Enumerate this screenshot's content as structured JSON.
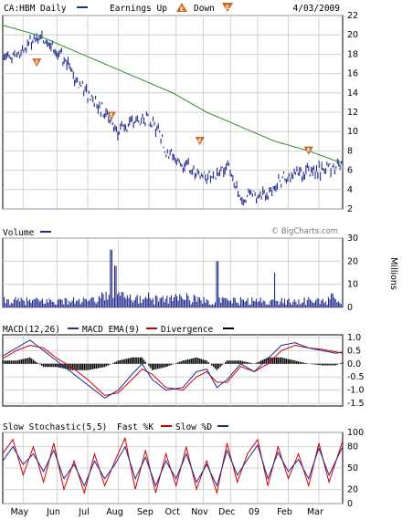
{
  "colors": {
    "price": "#1f2a8f",
    "ma": "#2e8b2e",
    "volume": "#1f2a8f",
    "macd": "#1f2a8f",
    "ema": "#d40000",
    "divergence": "#000000",
    "fastK": "#d40000",
    "slowD": "#1f2a8f",
    "grid": "#c8c8c8",
    "earnings": "#c8641e"
  },
  "header": {
    "ticker": "CA:HBM Daily",
    "earnings_label": "Earnings Up",
    "down_label": "Down",
    "date": "4/03/2009",
    "up_icon": "E",
    "down_icon": "E"
  },
  "watermark": "© BigCharts.com",
  "volume_header": {
    "label": "Volume"
  },
  "volume_unit": "Millions",
  "macd_header": {
    "label": "MACD(12,26)",
    "ema_label": "MACD EMA(9)",
    "div_label": "Divergence"
  },
  "stoch_header": {
    "label": "Slow Stochastic(5,5)",
    "fast_label": "Fast %K",
    "slow_label": "Slow %D"
  },
  "chart_data": [
    {
      "type": "line",
      "name": "price",
      "y_ticks": [
        "22",
        "20",
        "18",
        "16",
        "14",
        "12",
        "10",
        "8",
        "6",
        "4",
        "2"
      ],
      "ylim": [
        2,
        22
      ],
      "x_ticks": [
        "May",
        "Jun",
        "Jul",
        "Aug",
        "Sep",
        "Oct",
        "Nov",
        "Dec",
        "09",
        "Feb",
        "Mar"
      ],
      "grid": true,
      "price_points": [
        [
          0,
          17.5
        ],
        [
          5,
          18
        ],
        [
          10,
          20
        ],
        [
          14,
          19
        ],
        [
          18,
          17.5
        ],
        [
          22,
          15
        ],
        [
          26,
          13.5
        ],
        [
          30,
          12
        ],
        [
          34,
          10
        ],
        [
          38,
          11
        ],
        [
          42,
          11.5
        ],
        [
          46,
          10
        ],
        [
          48,
          8
        ],
        [
          52,
          7
        ],
        [
          56,
          6
        ],
        [
          60,
          5
        ],
        [
          64,
          6
        ],
        [
          66,
          6.5
        ],
        [
          68,
          5
        ],
        [
          70,
          3.2
        ],
        [
          74,
          3.3
        ],
        [
          78,
          3.5
        ],
        [
          82,
          5
        ],
        [
          86,
          5.6
        ],
        [
          90,
          5.8
        ],
        [
          94,
          6
        ],
        [
          98,
          6.5
        ],
        [
          100,
          6.8
        ]
      ],
      "ma_points": [
        [
          0,
          21
        ],
        [
          10,
          20
        ],
        [
          20,
          18.5
        ],
        [
          30,
          17
        ],
        [
          40,
          15.5
        ],
        [
          50,
          14
        ],
        [
          60,
          12
        ],
        [
          70,
          10.5
        ],
        [
          80,
          9
        ],
        [
          90,
          8
        ],
        [
          100,
          6.7
        ]
      ],
      "earnings_down": [
        [
          10,
          16.7
        ],
        [
          32,
          11.2
        ],
        [
          58,
          8.6
        ],
        [
          90,
          7.6
        ]
      ]
    },
    {
      "type": "bar",
      "name": "volume",
      "y_ticks": [
        "30",
        "20",
        "10",
        "0"
      ],
      "ylim": [
        0,
        30
      ],
      "peaks": [
        [
          32,
          25
        ],
        [
          33,
          18
        ],
        [
          63,
          20
        ],
        [
          80,
          15
        ],
        [
          97,
          6
        ]
      ]
    },
    {
      "type": "line",
      "name": "macd",
      "y_ticks": [
        "1.0",
        "0.5",
        "0.0",
        "-0.5",
        "-1.0",
        "-1.5"
      ],
      "ylim": [
        -1.6,
        1.1
      ],
      "macd_points": [
        [
          0,
          0.3
        ],
        [
          4,
          0.6
        ],
        [
          8,
          0.9
        ],
        [
          12,
          0.5
        ],
        [
          16,
          0.1
        ],
        [
          20,
          -0.3
        ],
        [
          25,
          -0.8
        ],
        [
          30,
          -1.3
        ],
        [
          34,
          -1.0
        ],
        [
          38,
          -0.4
        ],
        [
          41,
          0.0
        ],
        [
          44,
          -0.6
        ],
        [
          48,
          -1.0
        ],
        [
          53,
          -0.9
        ],
        [
          57,
          -0.3
        ],
        [
          60,
          -0.2
        ],
        [
          63,
          -0.9
        ],
        [
          66,
          -0.6
        ],
        [
          70,
          0.0
        ],
        [
          74,
          -0.3
        ],
        [
          78,
          0.2
        ],
        [
          82,
          0.7
        ],
        [
          86,
          0.8
        ],
        [
          90,
          0.6
        ],
        [
          94,
          0.5
        ],
        [
          98,
          0.4
        ],
        [
          100,
          0.45
        ]
      ],
      "ema_points": [
        [
          0,
          0.2
        ],
        [
          4,
          0.5
        ],
        [
          8,
          0.7
        ],
        [
          12,
          0.6
        ],
        [
          16,
          0.2
        ],
        [
          20,
          -0.1
        ],
        [
          25,
          -0.6
        ],
        [
          30,
          -1.2
        ],
        [
          34,
          -1.1
        ],
        [
          38,
          -0.6
        ],
        [
          41,
          -0.2
        ],
        [
          44,
          -0.4
        ],
        [
          48,
          -0.9
        ],
        [
          53,
          -1.0
        ],
        [
          57,
          -0.5
        ],
        [
          60,
          -0.3
        ],
        [
          63,
          -0.7
        ],
        [
          66,
          -0.7
        ],
        [
          70,
          -0.1
        ],
        [
          74,
          -0.3
        ],
        [
          78,
          0.0
        ],
        [
          82,
          0.5
        ],
        [
          86,
          0.7
        ],
        [
          90,
          0.6
        ],
        [
          94,
          0.55
        ],
        [
          98,
          0.45
        ],
        [
          100,
          0.4
        ]
      ]
    },
    {
      "type": "line",
      "name": "stochastic",
      "y_ticks": [
        "100",
        "80",
        "50",
        "20",
        "0"
      ],
      "ylim": [
        0,
        100
      ],
      "k_points": [
        [
          0,
          70
        ],
        [
          3,
          90
        ],
        [
          6,
          40
        ],
        [
          9,
          80
        ],
        [
          12,
          30
        ],
        [
          15,
          85
        ],
        [
          18,
          20
        ],
        [
          21,
          60
        ],
        [
          24,
          15
        ],
        [
          27,
          70
        ],
        [
          30,
          25
        ],
        [
          33,
          60
        ],
        [
          36,
          92
        ],
        [
          39,
          20
        ],
        [
          42,
          75
        ],
        [
          45,
          15
        ],
        [
          48,
          70
        ],
        [
          51,
          25
        ],
        [
          54,
          80
        ],
        [
          57,
          20
        ],
        [
          60,
          60
        ],
        [
          63,
          15
        ],
        [
          66,
          85
        ],
        [
          69,
          30
        ],
        [
          72,
          70
        ],
        [
          75,
          90
        ],
        [
          78,
          25
        ],
        [
          81,
          80
        ],
        [
          84,
          35
        ],
        [
          87,
          70
        ],
        [
          90,
          25
        ],
        [
          93,
          85
        ],
        [
          96,
          30
        ],
        [
          100,
          88
        ]
      ],
      "d_points": [
        [
          0,
          60
        ],
        [
          3,
          80
        ],
        [
          6,
          55
        ],
        [
          9,
          70
        ],
        [
          12,
          45
        ],
        [
          15,
          75
        ],
        [
          18,
          35
        ],
        [
          21,
          55
        ],
        [
          24,
          25
        ],
        [
          27,
          60
        ],
        [
          30,
          35
        ],
        [
          33,
          55
        ],
        [
          36,
          80
        ],
        [
          39,
          35
        ],
        [
          42,
          65
        ],
        [
          45,
          25
        ],
        [
          48,
          60
        ],
        [
          51,
          35
        ],
        [
          54,
          70
        ],
        [
          57,
          30
        ],
        [
          60,
          55
        ],
        [
          63,
          25
        ],
        [
          66,
          75
        ],
        [
          69,
          40
        ],
        [
          72,
          62
        ],
        [
          75,
          82
        ],
        [
          78,
          35
        ],
        [
          81,
          72
        ],
        [
          84,
          45
        ],
        [
          87,
          62
        ],
        [
          90,
          35
        ],
        [
          93,
          78
        ],
        [
          96,
          40
        ],
        [
          100,
          80
        ]
      ]
    }
  ]
}
